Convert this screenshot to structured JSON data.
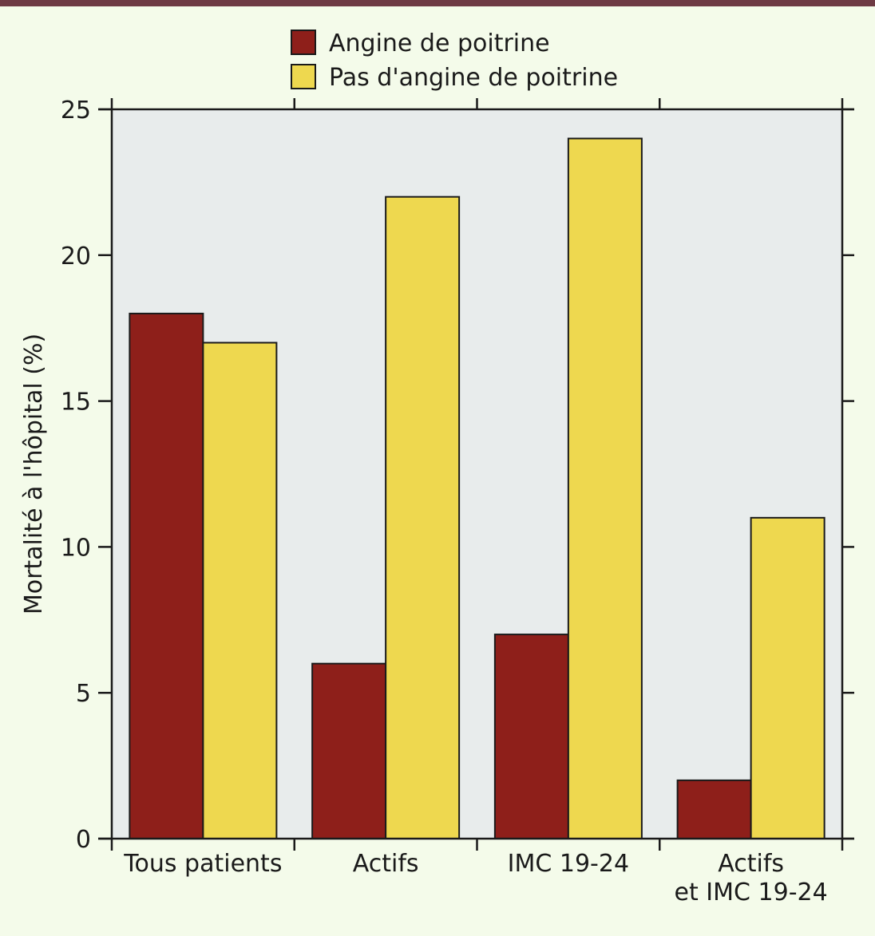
{
  "chart_data": {
    "type": "bar",
    "title": "",
    "xlabel": "",
    "ylabel": "Mortalité à l'hôpital (%)",
    "ylim": [
      0,
      25
    ],
    "yticks": [
      0,
      5,
      10,
      15,
      20,
      25
    ],
    "categories": [
      [
        "Tous patients"
      ],
      [
        "Actifs"
      ],
      [
        "IMC 19-24"
      ],
      [
        "Actifs",
        "et IMC 19-24"
      ]
    ],
    "series": [
      {
        "name": "Angine de poitrine",
        "color": "#8e1f1a",
        "values": [
          18,
          6,
          7,
          2
        ]
      },
      {
        "name": "Pas d'angine de poitrine",
        "color": "#eed84f",
        "values": [
          17,
          22,
          24,
          11
        ]
      }
    ],
    "legend_position": "top-center",
    "grid": false,
    "colors": {
      "background": "#f4fbea",
      "plot_background": "#e8ecec",
      "top_bar": "#6e3a44"
    }
  }
}
